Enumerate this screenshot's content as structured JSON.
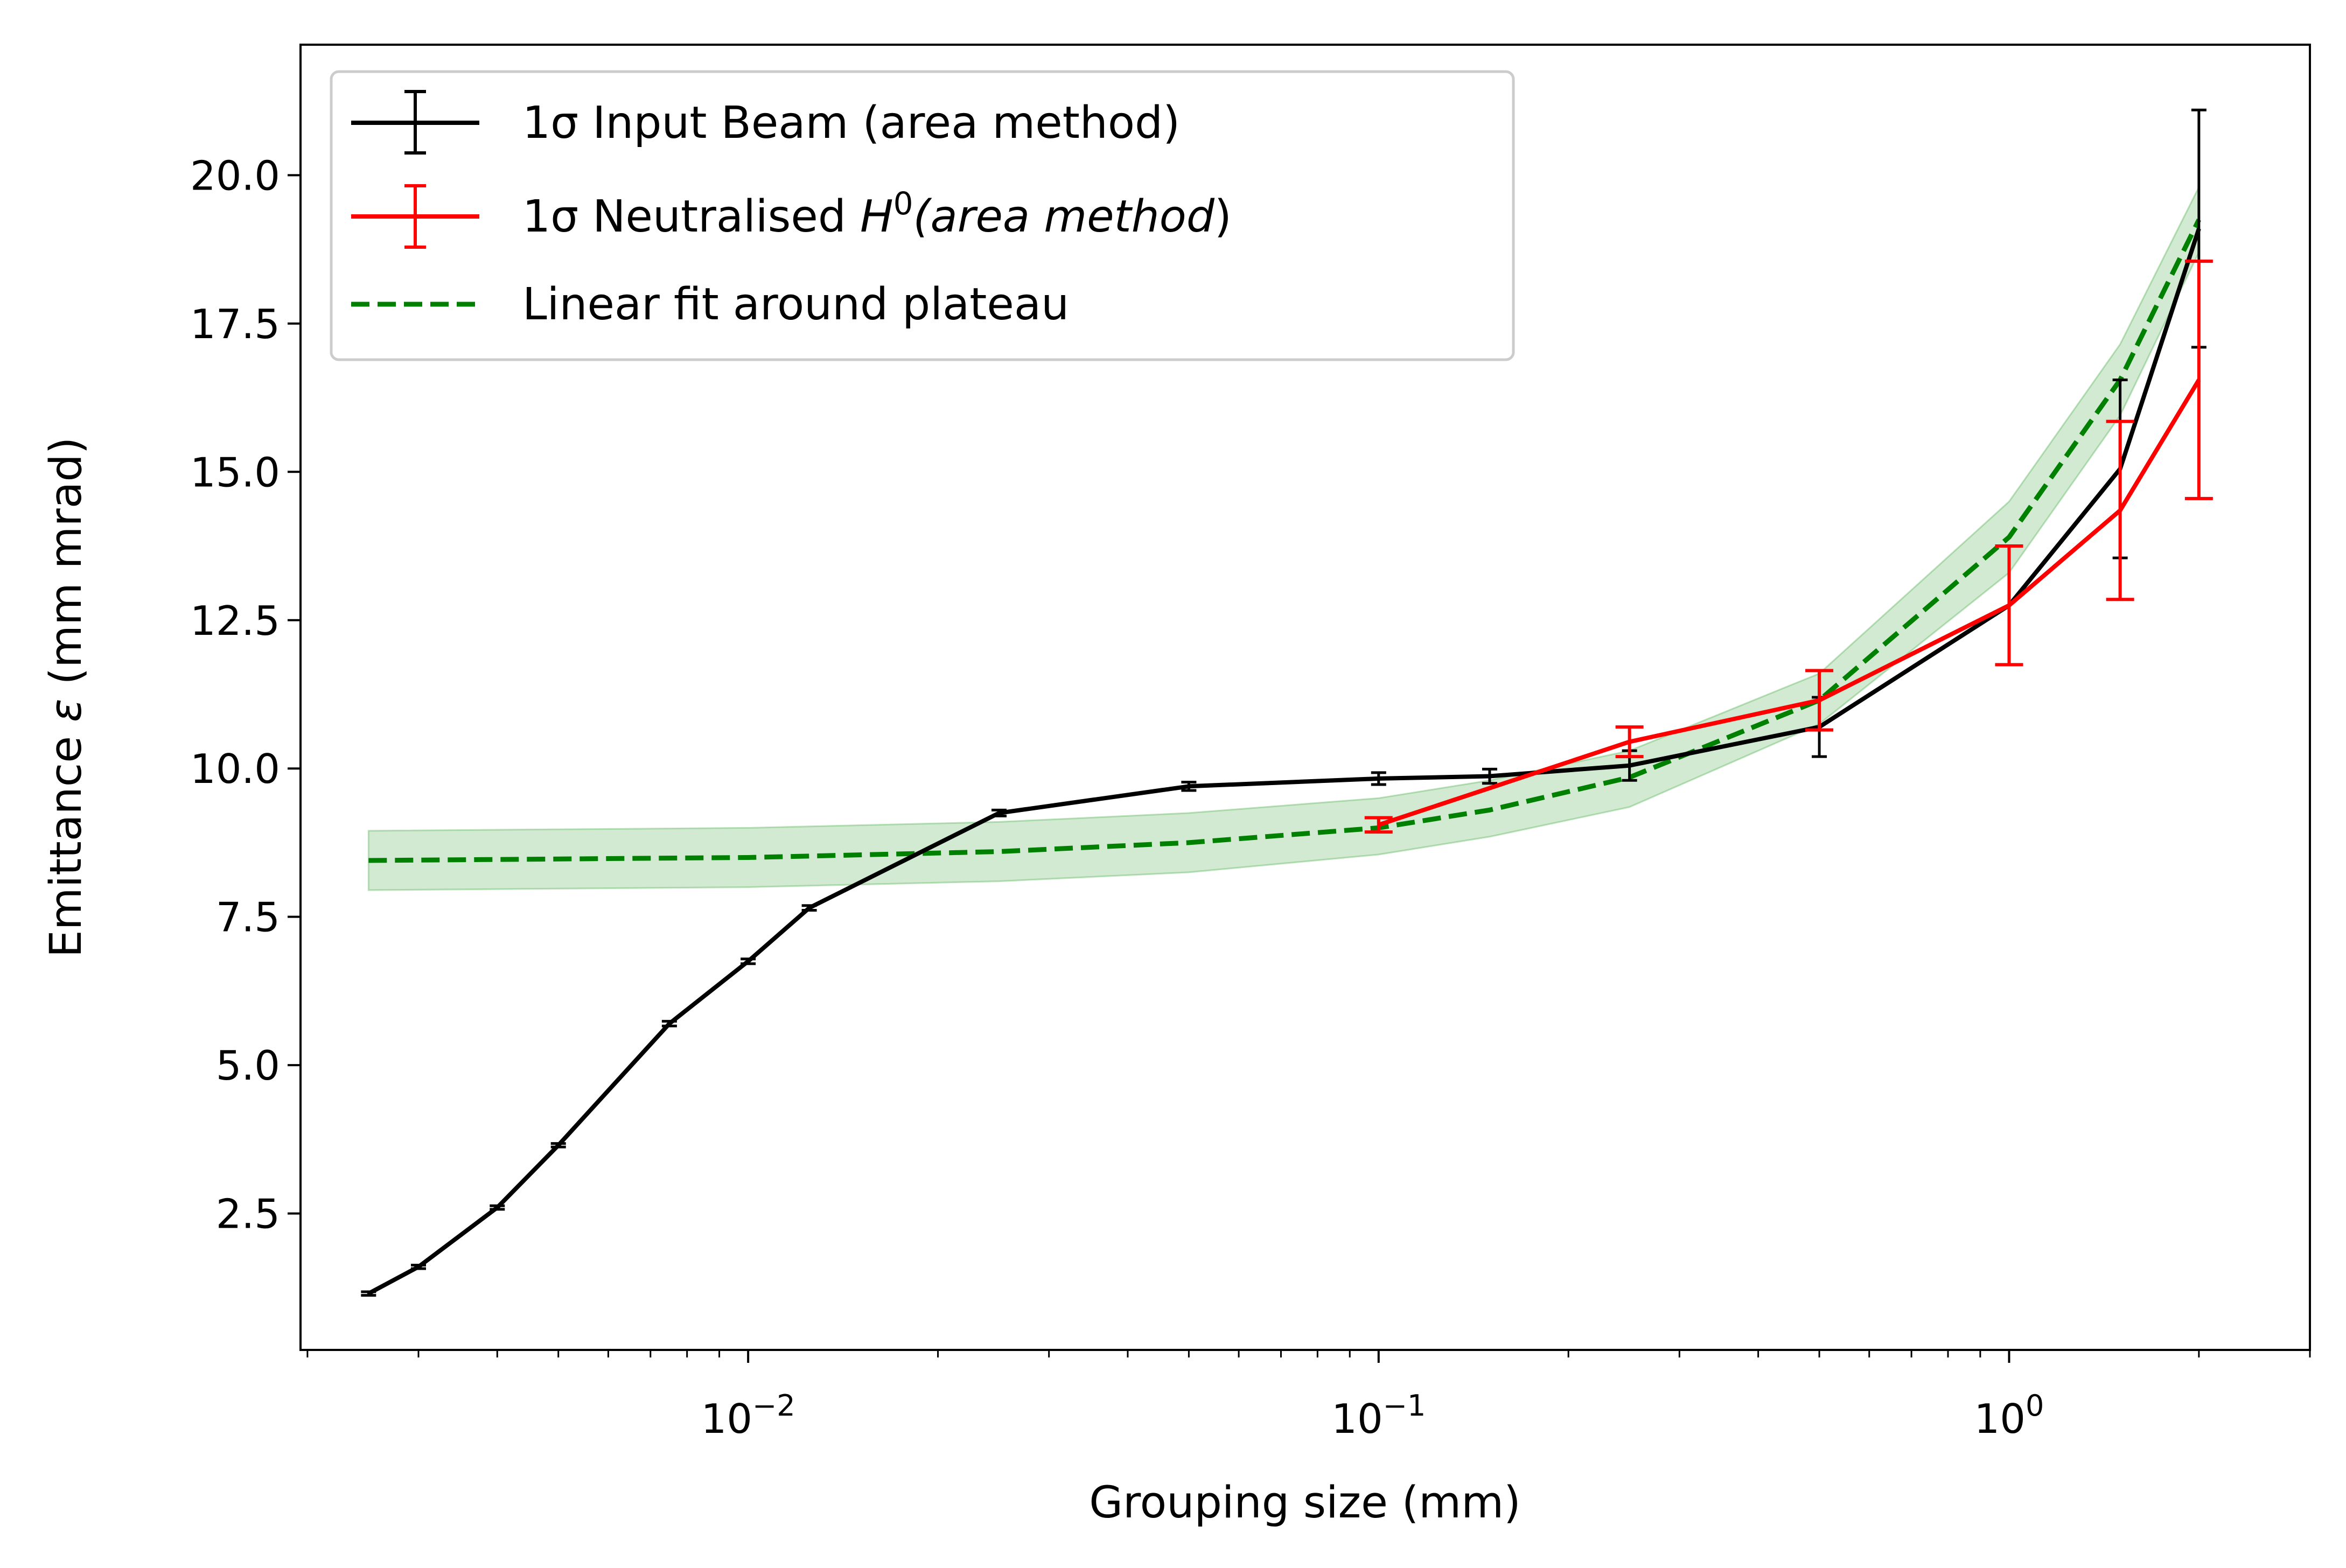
{
  "chart_data": {
    "type": "line",
    "title": "",
    "xlabel": "Grouping size (mm)",
    "ylabel_prefix": "Emittance ",
    "ylabel_symbol": "ε",
    "ylabel_suffix": " (mm mrad)",
    "xscale": "log",
    "xlim": [
      0.00195,
      3.0
    ],
    "ylim": [
      0.2,
      22.2
    ],
    "x_ticks": [
      {
        "value": 0.01,
        "base": "10",
        "exp": "−2"
      },
      {
        "value": 0.1,
        "base": "10",
        "exp": "−1"
      },
      {
        "value": 1.0,
        "base": "10",
        "exp": "0"
      }
    ],
    "y_ticks": [
      {
        "value": 2.5,
        "label": "2.5"
      },
      {
        "value": 5.0,
        "label": "5.0"
      },
      {
        "value": 7.5,
        "label": "7.5"
      },
      {
        "value": 10.0,
        "label": "10.0"
      },
      {
        "value": 12.5,
        "label": "12.5"
      },
      {
        "value": 15.0,
        "label": "15.0"
      },
      {
        "value": 17.5,
        "label": "17.5"
      },
      {
        "value": 20.0,
        "label": "20.0"
      }
    ],
    "grid": false,
    "legend_position": "top-left",
    "series": [
      {
        "name": "1σ Input Beam (area method)",
        "color": "#000000",
        "style": "solid-errorbar",
        "x": [
          0.0025,
          0.003,
          0.004,
          0.005,
          0.0075,
          0.01,
          0.0125,
          0.025,
          0.05,
          0.1,
          0.15,
          0.25,
          0.5,
          1.0,
          1.5,
          2.0
        ],
        "y": [
          1.15,
          1.6,
          2.6,
          3.65,
          5.7,
          6.75,
          7.65,
          9.25,
          9.7,
          9.83,
          9.87,
          10.05,
          10.7,
          12.75,
          15.05,
          19.1
        ],
        "yerr": [
          0.03,
          0.03,
          0.03,
          0.03,
          0.04,
          0.04,
          0.04,
          0.05,
          0.07,
          0.1,
          0.12,
          0.25,
          0.5,
          0.0,
          1.5,
          2.0
        ]
      },
      {
        "name_prefix": "1σ Neutralised ",
        "name_math": "H",
        "name_sup": "0",
        "name_suffix_italic": "(area method",
        "name_close": ")",
        "color": "#ff0000",
        "style": "solid-errorbar",
        "x": [
          0.1,
          0.25,
          0.5,
          1.0,
          1.5,
          2.0
        ],
        "y": [
          9.05,
          10.45,
          11.15,
          12.75,
          14.35,
          16.55
        ],
        "yerr": [
          0.12,
          0.25,
          0.5,
          1.0,
          1.5,
          2.0
        ]
      },
      {
        "name": "Linear fit around plateau",
        "color": "#008000",
        "band_color": "#2ca02c",
        "style": "dashed-band",
        "x": [
          0.0025,
          0.01,
          0.025,
          0.05,
          0.1,
          0.15,
          0.25,
          0.5,
          1.0,
          1.5,
          2.0
        ],
        "y": [
          8.45,
          8.5,
          8.6,
          8.75,
          9.0,
          9.3,
          9.85,
          11.15,
          13.9,
          16.55,
          19.25
        ],
        "lower": [
          7.95,
          8.0,
          8.1,
          8.25,
          8.55,
          8.85,
          9.35,
          10.75,
          13.3,
          15.95,
          18.7
        ],
        "upper": [
          8.95,
          9.0,
          9.1,
          9.25,
          9.5,
          9.8,
          10.3,
          11.6,
          14.5,
          17.15,
          19.8
        ]
      }
    ]
  }
}
